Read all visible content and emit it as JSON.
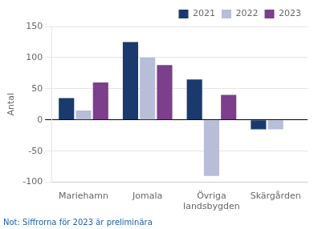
{
  "chart_data": {
    "type": "bar",
    "categories": [
      "Mariehamn",
      "Jomala",
      "Övriga\nlandsbygden",
      "Skärgården"
    ],
    "series": [
      {
        "name": "2021",
        "color": "#1a3a6e",
        "values": [
          35,
          125,
          65,
          -15
        ]
      },
      {
        "name": "2022",
        "color": "#b8bdd8",
        "values": [
          15,
          100,
          -90,
          -15
        ]
      },
      {
        "name": "2023",
        "color": "#7b3f8c",
        "values": [
          60,
          88,
          40,
          0
        ]
      }
    ],
    "ylabel": "Antal",
    "annotations": [
      {
        "text": "Not: Siffrorna för 2023 är preliminära",
        "color": "#1a5faf"
      }
    ],
    "ylim": [
      -100,
      150
    ],
    "yticks": [
      -100,
      -50,
      0,
      50,
      100,
      150
    ],
    "grid": true,
    "legend": "upper right"
  }
}
